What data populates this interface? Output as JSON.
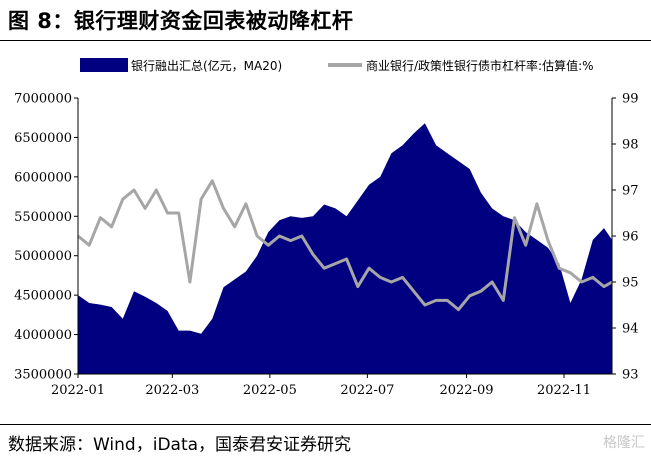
{
  "page": {
    "title": "图 8：银行理财资金回表被动降杠杆",
    "source": "数据来源：Wind，iData，国泰君安证券研究",
    "watermark": "格隆汇"
  },
  "chart_data": {
    "type": "area",
    "title": "图 8：银行理财资金回表被动降杠杆",
    "x_ticks": [
      "2022-01",
      "2022-03",
      "2022-05",
      "2022-07",
      "2022-09",
      "2022-11"
    ],
    "y_left": {
      "ylim": [
        3500000,
        7000000
      ],
      "ticks": [
        3500000,
        4000000,
        4500000,
        5000000,
        5500000,
        6000000,
        6500000,
        7000000
      ]
    },
    "y_right": {
      "ylim": [
        93,
        99
      ],
      "ticks": [
        93,
        94,
        95,
        96,
        97,
        98,
        99
      ]
    },
    "legend_position": "top",
    "series": [
      {
        "name": "银行融出汇总(亿元，MA20)",
        "axis": "left",
        "kind": "area",
        "color": "#000080",
        "x": [
          "2022-01-01",
          "2022-01-08",
          "2022-01-15",
          "2022-01-22",
          "2022-01-29",
          "2022-02-05",
          "2022-02-12",
          "2022-02-19",
          "2022-02-26",
          "2022-03-05",
          "2022-03-12",
          "2022-03-19",
          "2022-03-26",
          "2022-04-02",
          "2022-04-09",
          "2022-04-16",
          "2022-04-23",
          "2022-04-30",
          "2022-05-07",
          "2022-05-14",
          "2022-05-21",
          "2022-05-28",
          "2022-06-04",
          "2022-06-11",
          "2022-06-18",
          "2022-06-25",
          "2022-07-02",
          "2022-07-09",
          "2022-07-16",
          "2022-07-23",
          "2022-07-30",
          "2022-08-06",
          "2022-08-13",
          "2022-08-20",
          "2022-08-27",
          "2022-09-03",
          "2022-09-10",
          "2022-09-17",
          "2022-09-24",
          "2022-10-01",
          "2022-10-08",
          "2022-10-15",
          "2022-10-22",
          "2022-10-29",
          "2022-11-05",
          "2022-11-12",
          "2022-11-19",
          "2022-11-26",
          "2022-12-01"
        ],
        "values": [
          4500000,
          4400000,
          4380000,
          4350000,
          4200000,
          4550000,
          4480000,
          4400000,
          4300000,
          4050000,
          4050000,
          4010000,
          4200000,
          4600000,
          4700000,
          4800000,
          5000000,
          5300000,
          5450000,
          5500000,
          5480000,
          5500000,
          5650000,
          5600000,
          5500000,
          5700000,
          5900000,
          6000000,
          6300000,
          6400000,
          6550000,
          6680000,
          6400000,
          6300000,
          6200000,
          6100000,
          5800000,
          5600000,
          5500000,
          5450000,
          5300000,
          5200000,
          5100000,
          4900000,
          4400000,
          4700000,
          5200000,
          5350000,
          5200000
        ]
      },
      {
        "name": "商业银行/政策性银行债市杠杆率:估算值:%",
        "axis": "right",
        "kind": "line",
        "color": "#a6a6a6",
        "x": [
          "2022-01-01",
          "2022-01-08",
          "2022-01-15",
          "2022-01-22",
          "2022-01-29",
          "2022-02-05",
          "2022-02-12",
          "2022-02-19",
          "2022-02-26",
          "2022-03-05",
          "2022-03-12",
          "2022-03-19",
          "2022-03-26",
          "2022-04-02",
          "2022-04-09",
          "2022-04-16",
          "2022-04-23",
          "2022-04-30",
          "2022-05-07",
          "2022-05-14",
          "2022-05-21",
          "2022-05-28",
          "2022-06-04",
          "2022-06-11",
          "2022-06-18",
          "2022-06-25",
          "2022-07-02",
          "2022-07-09",
          "2022-07-16",
          "2022-07-23",
          "2022-07-30",
          "2022-08-06",
          "2022-08-13",
          "2022-08-20",
          "2022-08-27",
          "2022-09-03",
          "2022-09-10",
          "2022-09-17",
          "2022-09-24",
          "2022-10-01",
          "2022-10-08",
          "2022-10-15",
          "2022-10-22",
          "2022-10-29",
          "2022-11-05",
          "2022-11-12",
          "2022-11-19",
          "2022-11-26",
          "2022-12-01"
        ],
        "values": [
          96.0,
          95.8,
          96.4,
          96.2,
          96.8,
          97.0,
          96.6,
          97.0,
          96.5,
          96.5,
          95.0,
          96.8,
          97.2,
          96.6,
          96.2,
          96.7,
          96.0,
          95.8,
          96.0,
          95.9,
          96.0,
          95.6,
          95.3,
          95.4,
          95.5,
          94.9,
          95.3,
          95.1,
          95.0,
          95.1,
          94.8,
          94.5,
          94.6,
          94.6,
          94.4,
          94.7,
          94.8,
          95.0,
          94.6,
          96.4,
          95.8,
          96.7,
          95.9,
          95.3,
          95.2,
          95.0,
          95.1,
          94.9,
          95.0
        ]
      }
    ]
  }
}
